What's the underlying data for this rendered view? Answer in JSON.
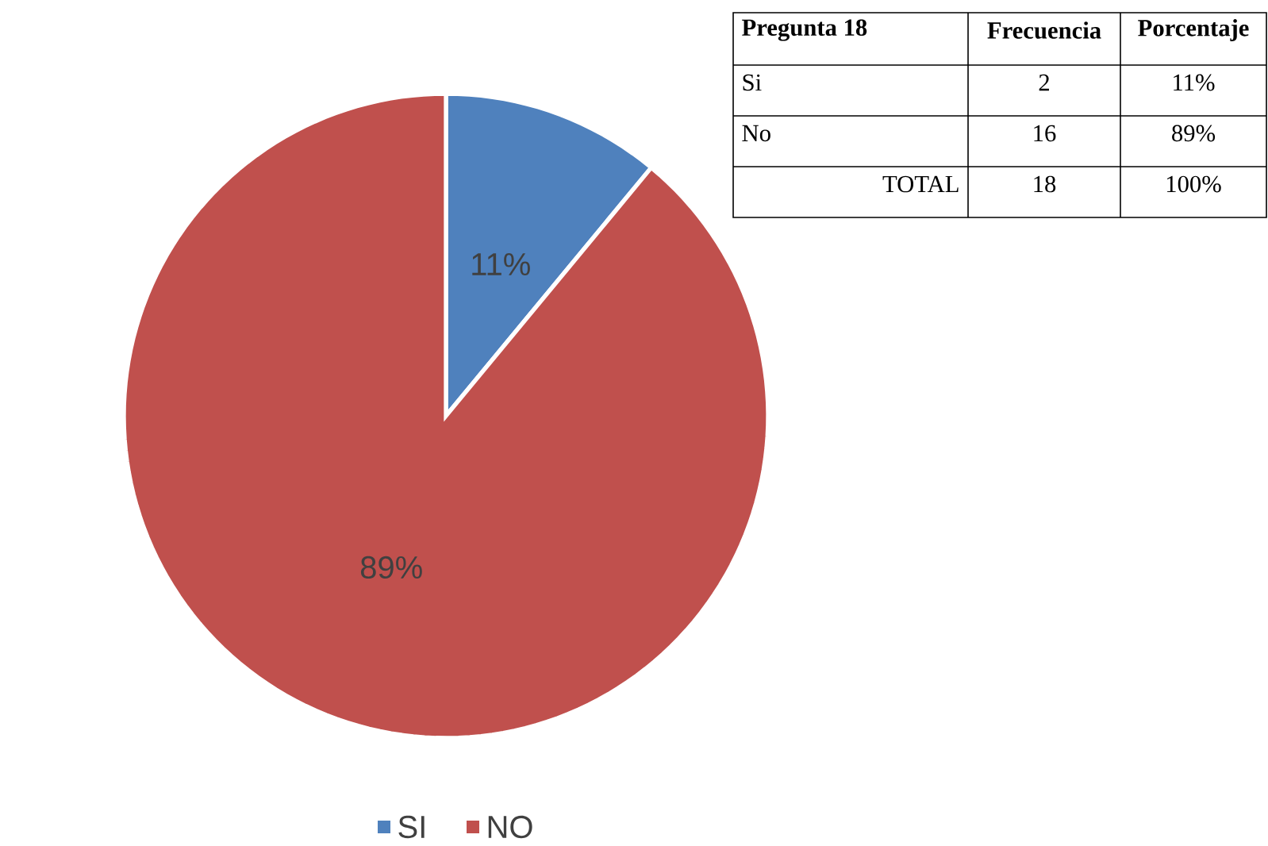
{
  "chart_data": [
    {
      "type": "pie",
      "categories": [
        "SI",
        "NO"
      ],
      "values": [
        11,
        89
      ],
      "colors": [
        "#4f81bd",
        "#c0504d"
      ],
      "value_labels": [
        "11%",
        "89%"
      ],
      "legend": "bottom"
    },
    {
      "type": "other",
      "annotations": [
        "Pregunta 18",
        "Frecuencia",
        "Porcentaje",
        "Si",
        "2",
        "11%",
        "No",
        "16",
        "89%",
        "TOTAL",
        "18",
        "100%"
      ]
    }
  ]
}
